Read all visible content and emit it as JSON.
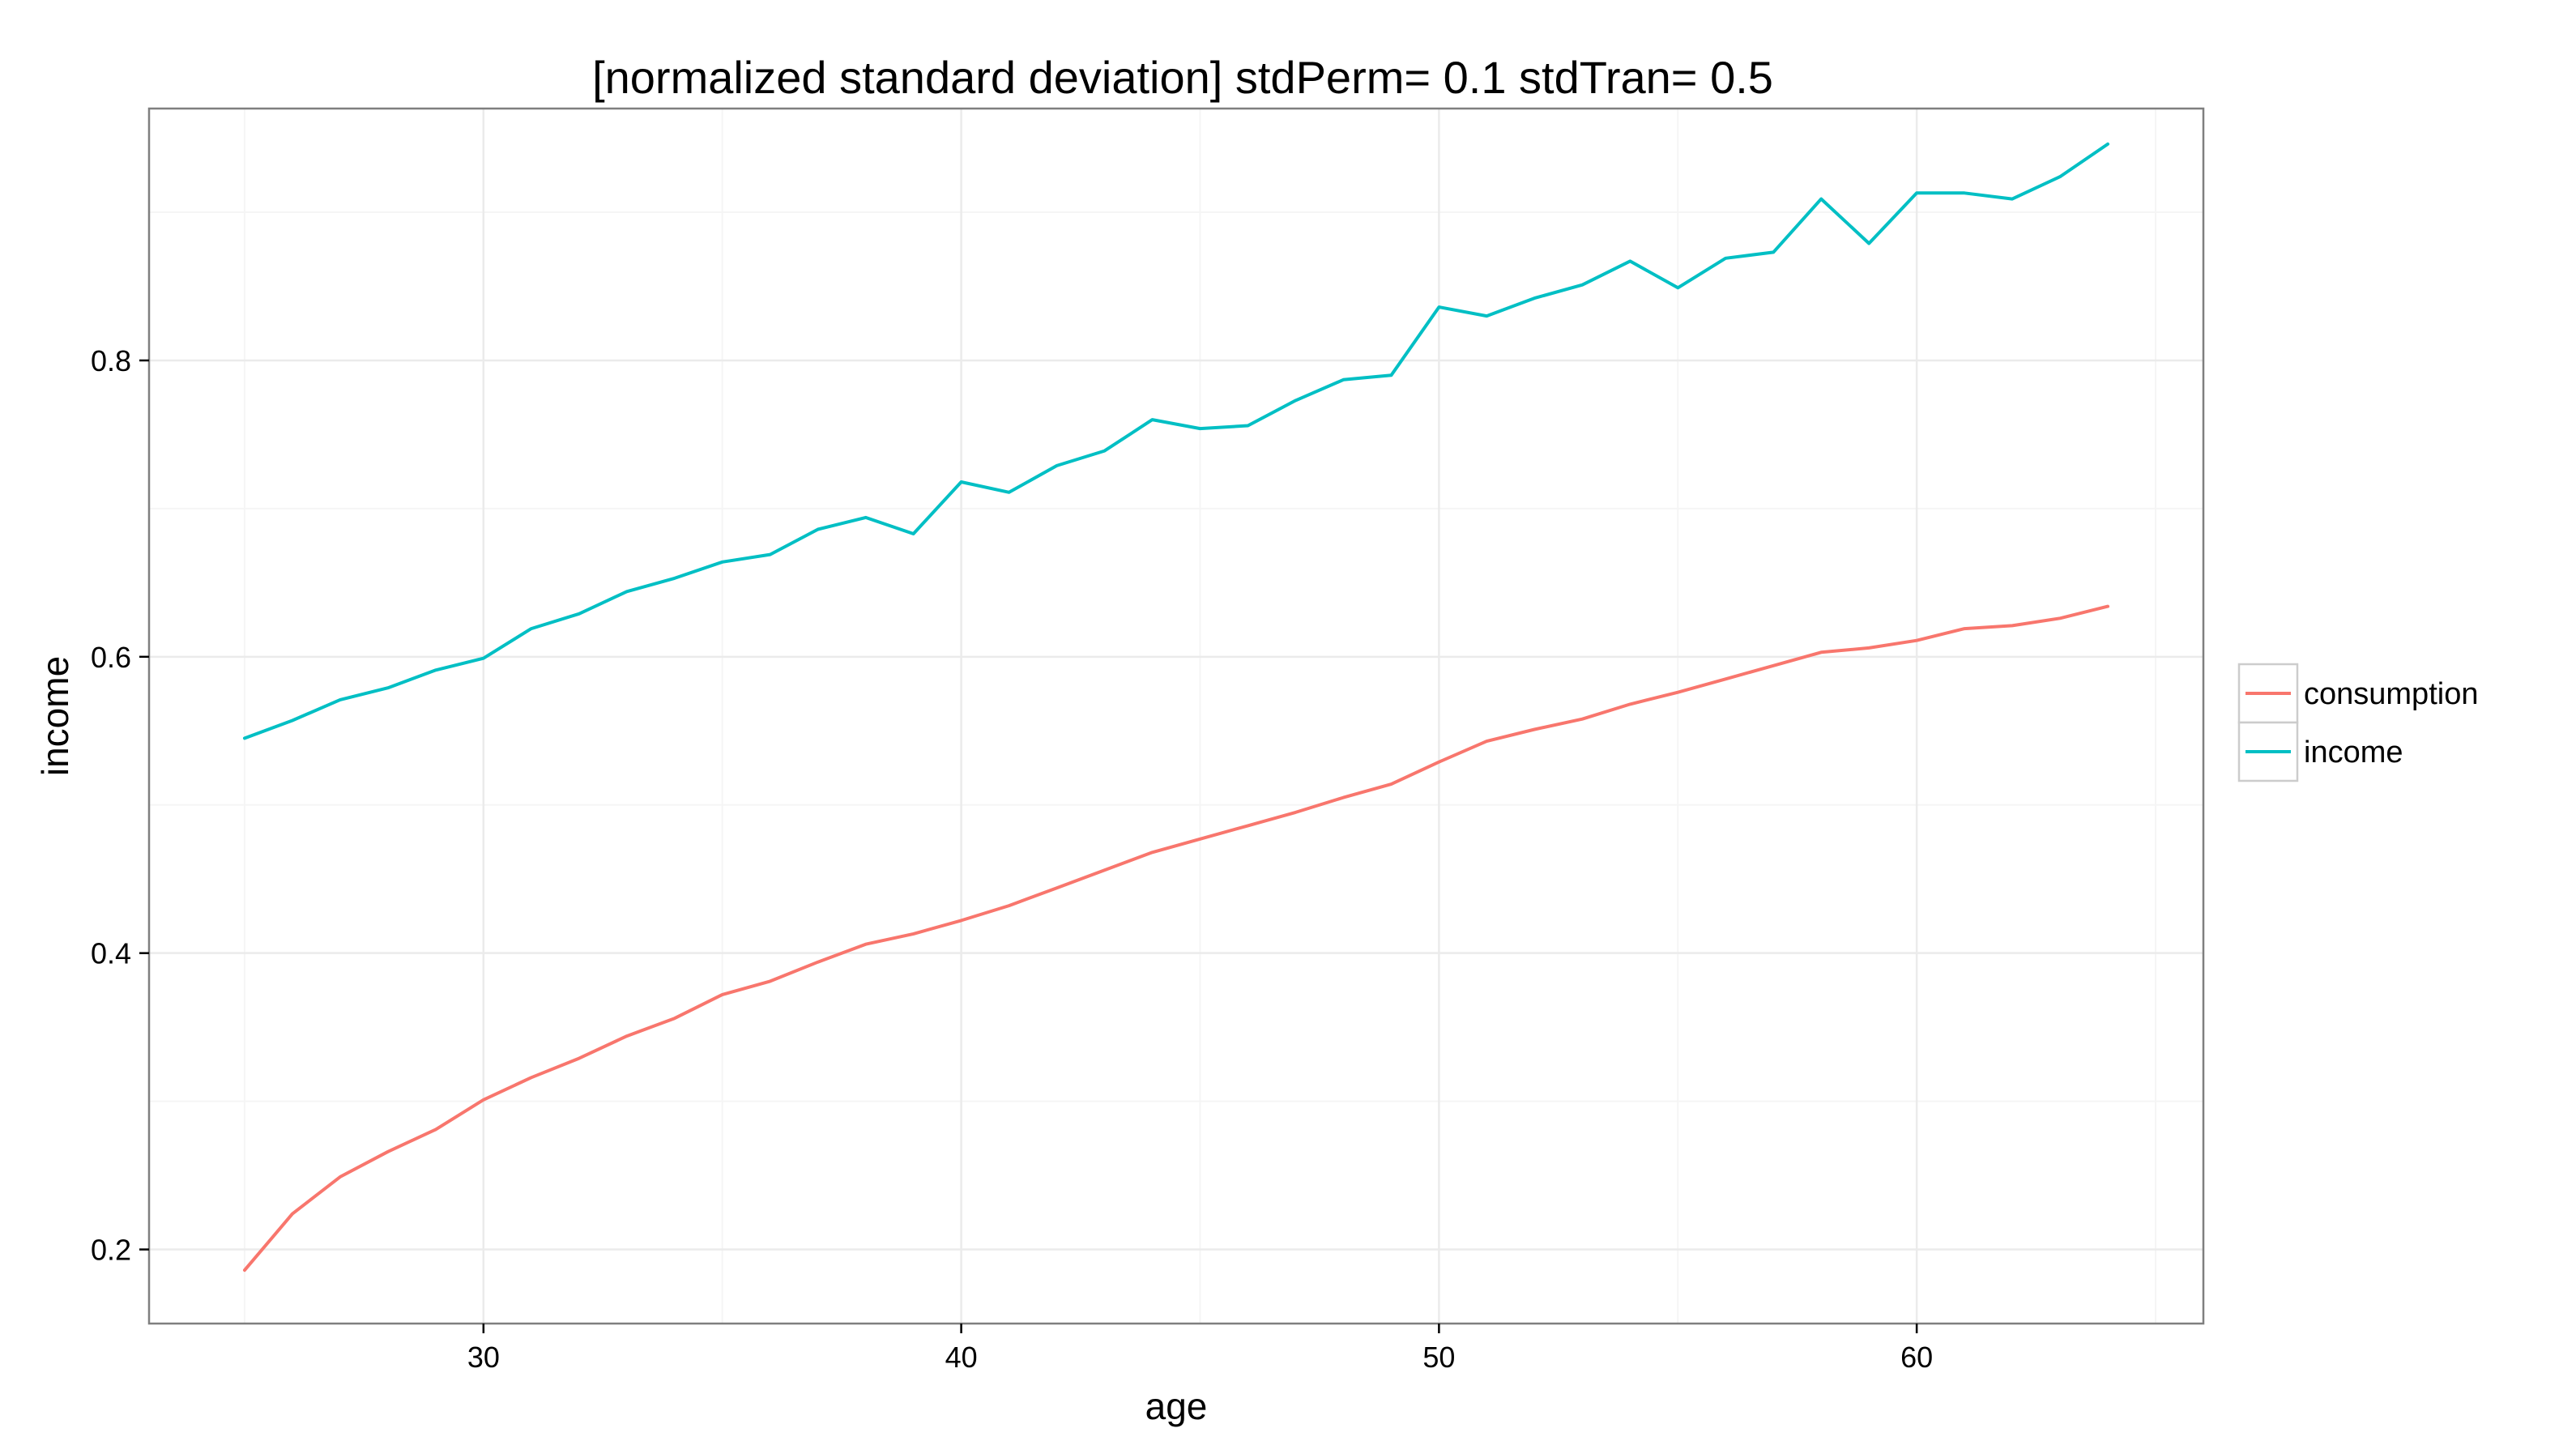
{
  "chart_data": {
    "type": "line",
    "title": "[normalized standard deviation] stdPerm= 0.1 stdTran= 0.5",
    "xlabel": "age",
    "ylabel": "income",
    "xlim": [
      23,
      66
    ],
    "ylim": [
      0.15,
      0.97
    ],
    "x_ticks": [
      30,
      40,
      50,
      60
    ],
    "x_tick_labels": [
      "30",
      "40",
      "50",
      "60"
    ],
    "y_ticks": [
      0.2,
      0.4,
      0.6,
      0.8
    ],
    "y_tick_labels": [
      "0.2",
      "0.4",
      "0.6",
      "0.8"
    ],
    "grid": true,
    "legend_placement": "right",
    "x": [
      25,
      26,
      27,
      28,
      29,
      30,
      31,
      32,
      33,
      34,
      35,
      36,
      37,
      38,
      39,
      40,
      41,
      42,
      43,
      44,
      45,
      46,
      47,
      48,
      49,
      50,
      51,
      52,
      53,
      54,
      55,
      56,
      57,
      58,
      59,
      60,
      61,
      62,
      63,
      64
    ],
    "series": [
      {
        "name": "consumption",
        "color": "#F8766D",
        "values": [
          0.186,
          0.224,
          0.249,
          0.266,
          0.281,
          0.301,
          0.316,
          0.329,
          0.344,
          0.356,
          0.372,
          0.381,
          0.394,
          0.406,
          0.413,
          0.422,
          0.432,
          0.444,
          0.456,
          0.468,
          0.477,
          0.486,
          0.495,
          0.505,
          0.514,
          0.529,
          0.543,
          0.551,
          0.558,
          0.568,
          0.576,
          0.585,
          0.594,
          0.603,
          0.606,
          0.611,
          0.619,
          0.621,
          0.626,
          0.634
        ]
      },
      {
        "name": "income",
        "color": "#00BFC4",
        "values": [
          0.545,
          0.557,
          0.571,
          0.579,
          0.591,
          0.599,
          0.619,
          0.629,
          0.644,
          0.653,
          0.664,
          0.669,
          0.686,
          0.694,
          0.683,
          0.718,
          0.711,
          0.729,
          0.739,
          0.76,
          0.754,
          0.756,
          0.773,
          0.787,
          0.79,
          0.836,
          0.83,
          0.842,
          0.851,
          0.867,
          0.849,
          0.869,
          0.873,
          0.909,
          0.879,
          0.913,
          0.913,
          0.909,
          0.924,
          0.946
        ]
      }
    ]
  },
  "colors": {
    "panel_border": "#7f7f7f",
    "grid_major": "#ebebeb",
    "grid_minor": "#f5f5f5",
    "background": "#ffffff"
  }
}
